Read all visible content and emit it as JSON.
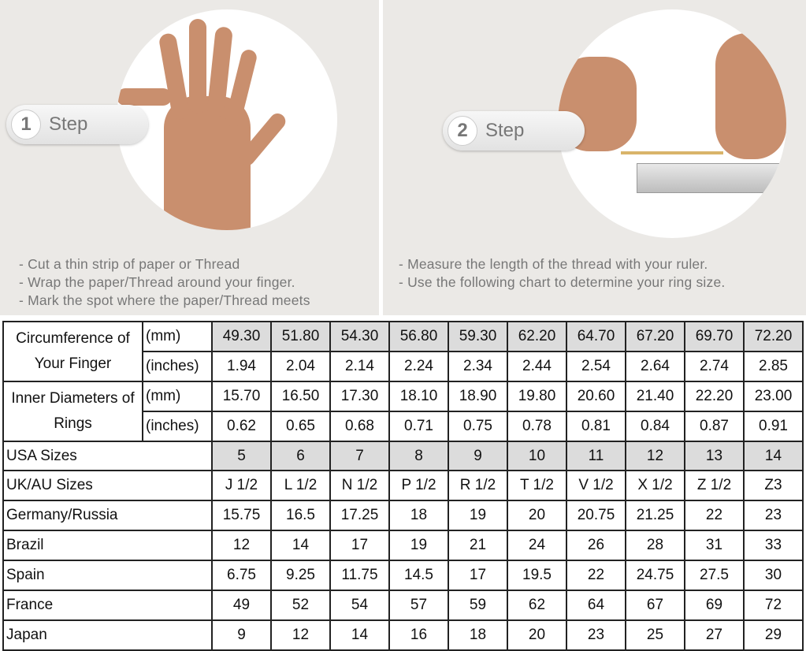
{
  "step1": {
    "number": "1",
    "label": "Step",
    "instructions": [
      "- Cut a thin strip of paper or Thread",
      "- Wrap the paper/Thread around your finger.",
      "- Mark the spot where the paper/Thread meets"
    ]
  },
  "step2": {
    "number": "2",
    "label": "Step",
    "instructions": [
      "- Measure the length of the thread with your ruler.",
      "- Use the following chart to determine your ring size."
    ]
  },
  "table": {
    "circumference": {
      "label": "Circumference of Your Finger",
      "mm_unit": "(mm)",
      "in_unit": "(inches)",
      "mm": [
        "49.30",
        "51.80",
        "54.30",
        "56.80",
        "59.30",
        "62.20",
        "64.70",
        "67.20",
        "69.70",
        "72.20"
      ],
      "inches": [
        "1.94",
        "2.04",
        "2.14",
        "2.24",
        "2.34",
        "2.44",
        "2.54",
        "2.64",
        "2.74",
        "2.85"
      ]
    },
    "inner": {
      "label": "Inner Diameters of Rings",
      "mm_unit": "(mm)",
      "in_unit": "(inches)",
      "mm": [
        "15.70",
        "16.50",
        "17.30",
        "18.10",
        "18.90",
        "19.80",
        "20.60",
        "21.40",
        "22.20",
        "23.00"
      ],
      "inches": [
        "0.62",
        "0.65",
        "0.68",
        "0.71",
        "0.75",
        "0.78",
        "0.81",
        "0.84",
        "0.87",
        "0.91"
      ]
    },
    "rows": [
      {
        "label": "USA Sizes",
        "values": [
          "5",
          "6",
          "7",
          "8",
          "9",
          "10",
          "11",
          "12",
          "13",
          "14"
        ]
      },
      {
        "label": "UK/AU Sizes",
        "values": [
          "J 1/2",
          "L 1/2",
          "N 1/2",
          "P 1/2",
          "R 1/2",
          "T 1/2",
          "V 1/2",
          "X 1/2",
          "Z 1/2",
          "Z3"
        ]
      },
      {
        "label": "Germany/Russia",
        "values": [
          "15.75",
          "16.5",
          "17.25",
          "18",
          "19",
          "20",
          "20.75",
          "21.25",
          "22",
          "23"
        ]
      },
      {
        "label": "Brazil",
        "values": [
          "12",
          "14",
          "17",
          "19",
          "21",
          "24",
          "26",
          "28",
          "31",
          "33"
        ]
      },
      {
        "label": "Spain",
        "values": [
          "6.75",
          "9.25",
          "11.75",
          "14.5",
          "17",
          "19.5",
          "22",
          "24.75",
          "27.5",
          "30"
        ]
      },
      {
        "label": "France",
        "values": [
          "49",
          "52",
          "54",
          "57",
          "59",
          "62",
          "64",
          "67",
          "69",
          "72"
        ]
      },
      {
        "label": "Japan",
        "values": [
          "9",
          "12",
          "14",
          "16",
          "18",
          "20",
          "23",
          "25",
          "27",
          "29"
        ]
      }
    ]
  }
}
